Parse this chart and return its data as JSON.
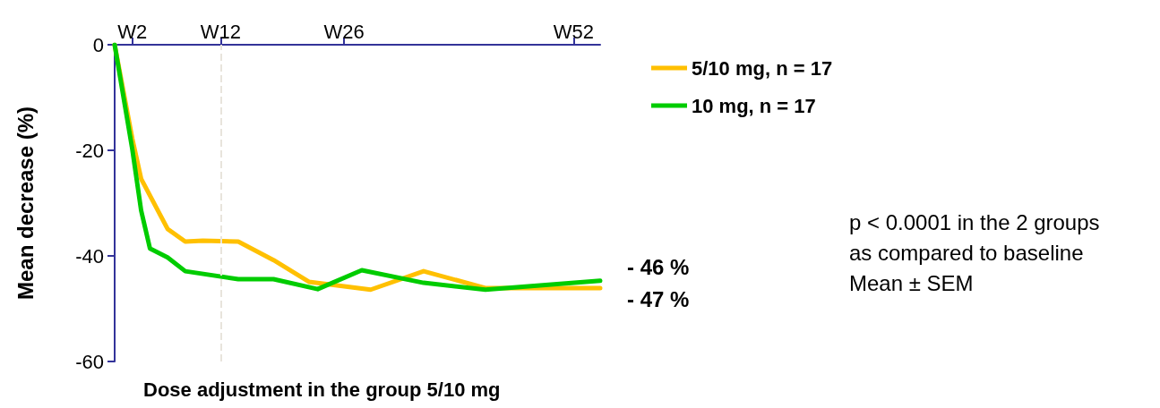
{
  "chart_data": {
    "type": "line",
    "xlabel": "Dose adjustment in the group 5/10 mg",
    "ylabel": "Mean decrease (%)",
    "categories": [
      null,
      null,
      "W2",
      null,
      null,
      null,
      null,
      null,
      null,
      null,
      null,
      null,
      "W12",
      null,
      null,
      null,
      null,
      null,
      null,
      null,
      null,
      null,
      null,
      null,
      null,
      null,
      "W26",
      null,
      null,
      null,
      null,
      null,
      null,
      null,
      null,
      null,
      null,
      null,
      null,
      null,
      null,
      null,
      null,
      null,
      null,
      null,
      null,
      null,
      null,
      null,
      null,
      null,
      "W52",
      null,
      null,
      null
    ],
    "series": [
      {
        "name": "5/10 mg, n = 17",
        "color": "#ffc000",
        "values": [
          0,
          null,
          -17.8,
          -25.4,
          null,
          null,
          -34.9,
          null,
          -37.3,
          null,
          -37.1,
          null,
          null,
          null,
          -37.3,
          null,
          null,
          null,
          -40.8,
          null,
          null,
          null,
          -44.9,
          null,
          null,
          null,
          null,
          null,
          null,
          -46.4,
          null,
          null,
          null,
          null,
          null,
          -42.9,
          null,
          null,
          null,
          null,
          null,
          null,
          -46.1,
          null,
          null,
          null,
          null,
          null,
          null,
          null,
          null,
          null,
          null,
          null,
          null,
          -46.1
        ]
      },
      {
        "name": "10 mg, n = 17",
        "color": "#00cc00",
        "values": [
          0,
          null,
          -19.8,
          -31.4,
          -38.6,
          null,
          -40.3,
          null,
          -42.9,
          null,
          null,
          null,
          null,
          null,
          -44.4,
          null,
          null,
          null,
          -44.4,
          null,
          null,
          null,
          null,
          -46.3,
          null,
          null,
          null,
          null,
          -42.7,
          null,
          null,
          null,
          null,
          null,
          null,
          -45.1,
          null,
          null,
          null,
          null,
          null,
          null,
          -46.4,
          null,
          null,
          null,
          null,
          null,
          null,
          null,
          null,
          null,
          null,
          null,
          null,
          -44.7
        ]
      }
    ],
    "ylim": [
      -60,
      0
    ],
    "yticks": [
      0,
      -20,
      -40,
      -60
    ],
    "ref_lines": [
      {
        "axis": "x",
        "value": "W12",
        "color": "#e8e4dc",
        "line_style": "dashed"
      }
    ],
    "annotations": [
      "- 46 %",
      "- 47 %",
      "p < 0.0001 in the 2 groups",
      "as compared to baseline",
      "Mean ± SEM"
    ],
    "legend": "right",
    "grid": false,
    "marker": "none",
    "line_style": "solid"
  }
}
